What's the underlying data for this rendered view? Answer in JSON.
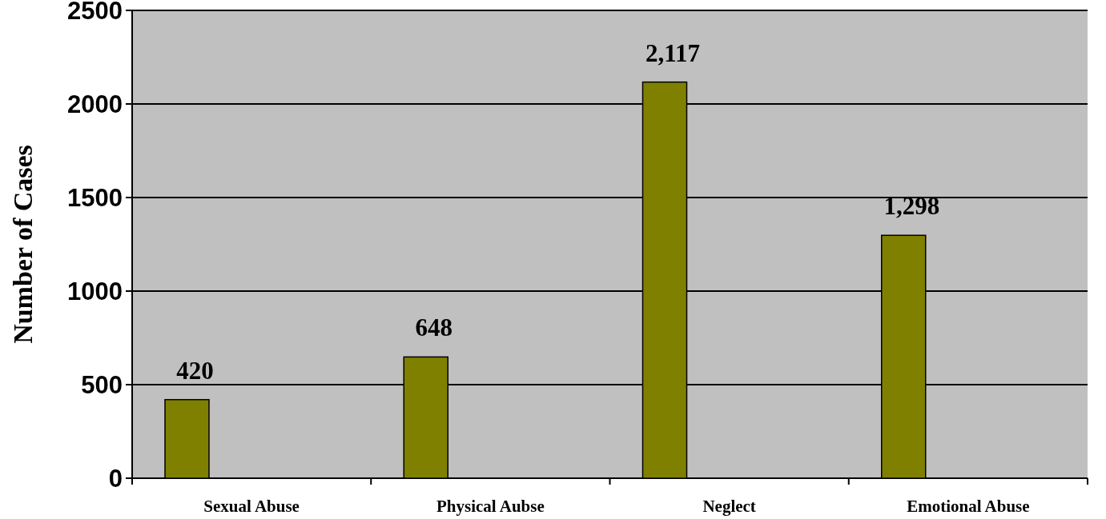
{
  "chart_data": {
    "type": "bar",
    "ylabel": "Number of Cases",
    "categories": [
      "Sexual Abuse",
      "Physical Aubse",
      "Neglect",
      "Emotional Abuse"
    ],
    "values": [
      420,
      648,
      2117,
      1298
    ],
    "value_labels": [
      "420",
      "648",
      "2,117",
      "1,298"
    ],
    "color": "#808000",
    "ylim": [
      0,
      2500
    ],
    "yticks": [
      0,
      500,
      1000,
      1500,
      2000,
      2500
    ],
    "grid": "y"
  }
}
